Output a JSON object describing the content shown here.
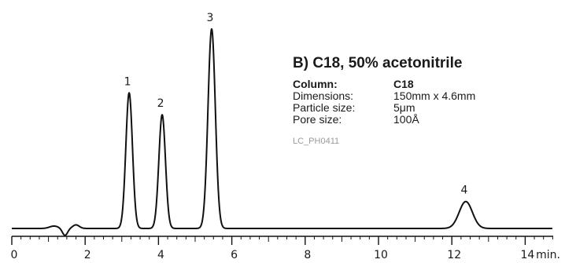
{
  "chart_data": {
    "type": "line",
    "title": "B) C18, 50% acetonitrile",
    "xlabel": "min.",
    "ylabel": "",
    "xlim": [
      0,
      15
    ],
    "x_ticks": [
      0,
      2,
      4,
      6,
      8,
      10,
      12,
      14
    ],
    "tick_labels": [
      "0",
      "2",
      "4",
      "6",
      "8",
      "10",
      "12",
      "14"
    ],
    "grid": false,
    "peaks": [
      {
        "label": "1",
        "retention_time": 3.2,
        "height": 0.68,
        "width": 0.09
      },
      {
        "label": "2",
        "retention_time": 4.1,
        "height": 0.57,
        "width": 0.09
      },
      {
        "label": "3",
        "retention_time": 5.45,
        "height": 1.0,
        "width": 0.1
      },
      {
        "label": "4",
        "retention_time": 12.38,
        "height": 0.135,
        "width": 0.18
      }
    ],
    "baseline_disturbance": [
      {
        "t": 1.15,
        "amp": 0.012,
        "w": 0.12
      },
      {
        "t": 1.45,
        "amp": -0.035,
        "w": 0.07
      },
      {
        "t": 1.75,
        "amp": 0.018,
        "w": 0.09
      }
    ]
  },
  "info": {
    "title": "B) C18, 50% acetonitrile",
    "rows": [
      {
        "key": "Column:",
        "value": "C18"
      },
      {
        "key": "Dimensions:",
        "value": "150mm x 4.6mm"
      },
      {
        "key": "Particle size:",
        "value": "5μm"
      },
      {
        "key": "Pore size:",
        "value": "100Å"
      }
    ],
    "code": "LC_PH0411"
  }
}
